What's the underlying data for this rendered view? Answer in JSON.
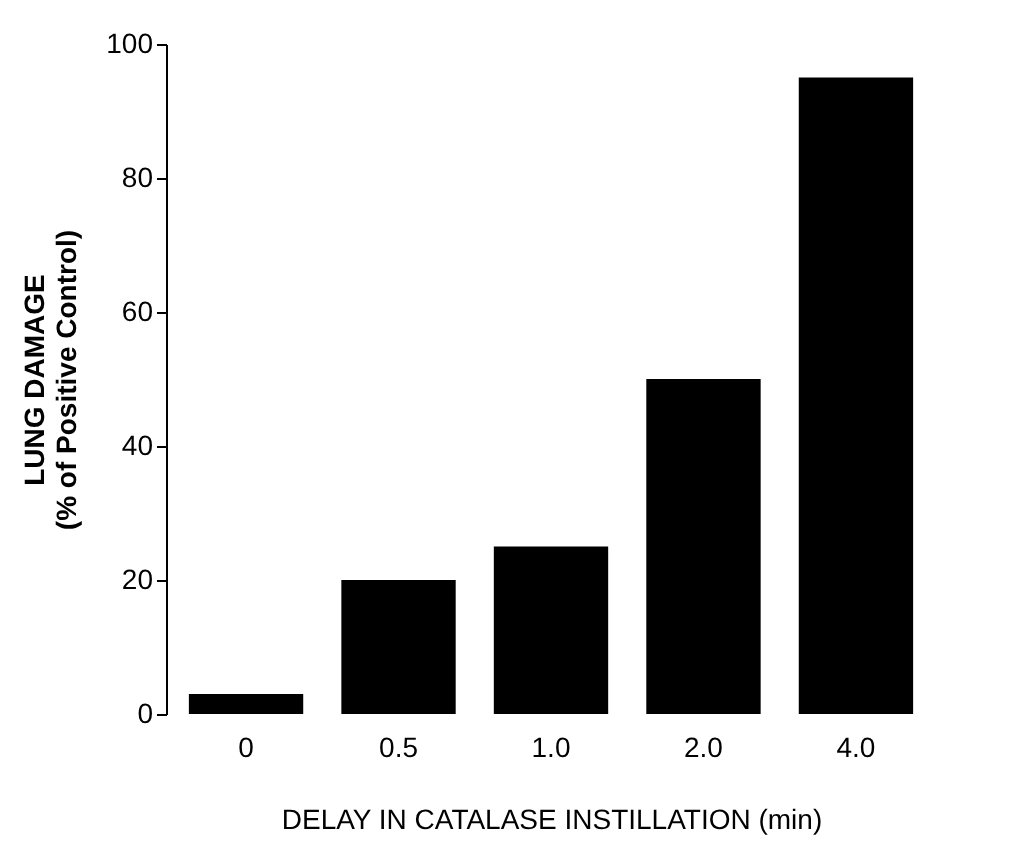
{
  "chart_data": {
    "type": "bar",
    "xlabel": "DELAY IN CATALASE INSTILLATION (min)",
    "ylabel": "LUNG DAMAGE\n(% of Positive Control)",
    "categories": [
      "0",
      "0.5",
      "1.0",
      "2.0",
      "4.0"
    ],
    "values": [
      3,
      20,
      25,
      50,
      95
    ],
    "color": "#000000",
    "ylim": [
      0,
      100
    ],
    "yticks": [
      0,
      20,
      40,
      60,
      80,
      100
    ],
    "grid": false
  }
}
